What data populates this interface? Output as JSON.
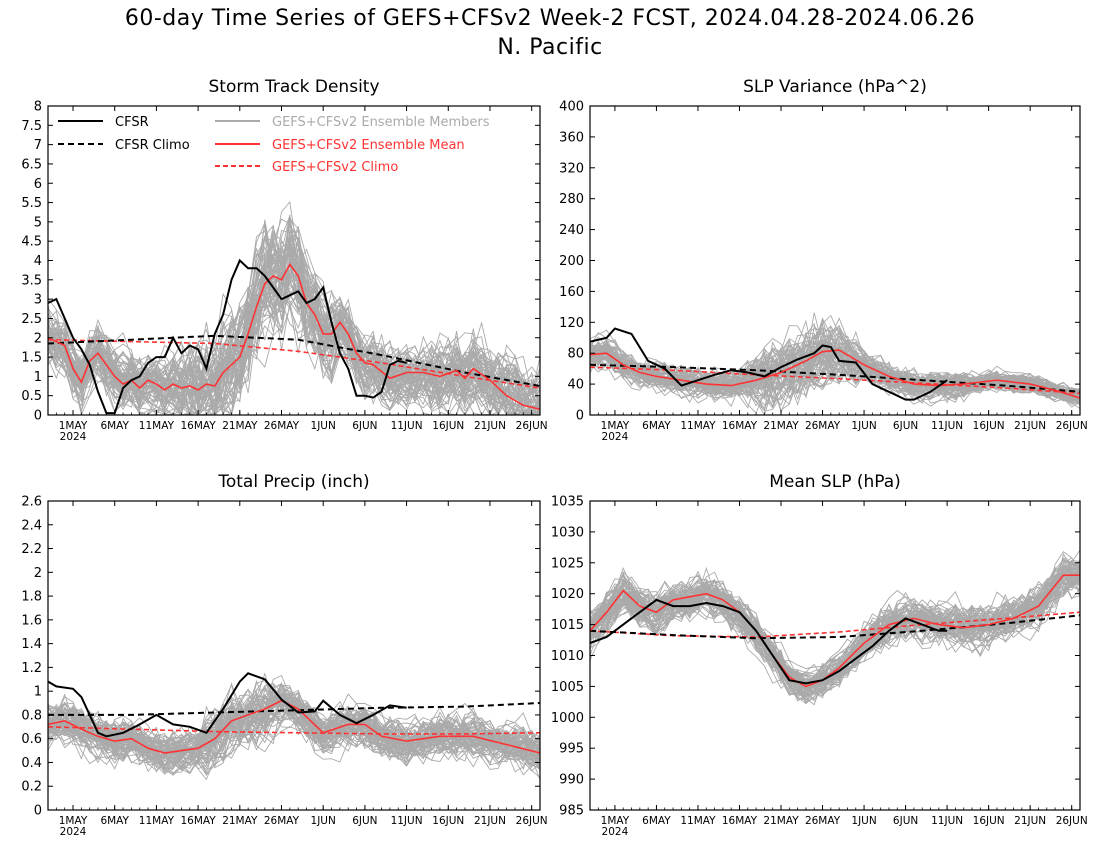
{
  "title": {
    "line1": "60-day Time Series of GEFS+CFSv2 Week-2 FCST, 2024.04.28-2024.06.26",
    "line2": "N. Pacific"
  },
  "legend": {
    "placement": "top (Storm Track Density panel)",
    "cfsr": "CFSR",
    "cfsr_climo": "CFSR Climo",
    "members": "GEFS+CFSv2 Ensemble Members",
    "mean": "GEFS+CFSv2 Ensemble Mean",
    "climo": "GEFS+CFSv2 Climo"
  },
  "colors": {
    "cfsr": "#000000",
    "ensemble_members": "#aaaaaa",
    "ensemble_mean": "#ff3333"
  },
  "chart_data": [
    {
      "type": "line",
      "title": "Storm Track Density",
      "x_range": [
        "2024-04-28",
        "2024-06-26"
      ],
      "xticks": [
        "1MAY\n2024",
        "6MAY",
        "11MAY",
        "16MAY",
        "21MAY",
        "26MAY",
        "1JUN",
        "6JUN",
        "11JUN",
        "16JUN",
        "21JUN",
        "26JUN"
      ],
      "ylim": [
        0,
        8
      ],
      "yticks": [
        "0",
        "0.5",
        "1",
        "1.5",
        "2",
        "2.5",
        "3",
        "3.5",
        "4",
        "4.5",
        "5",
        "5.5",
        "6",
        "6.5",
        "7",
        "7.5",
        "8"
      ],
      "grid": false,
      "series": [
        {
          "name": "CFSR",
          "x": [
            "2024-04-28",
            "2024-04-29",
            "2024-04-30",
            "2024-05-01",
            "2024-05-02",
            "2024-05-03",
            "2024-05-04",
            "2024-05-05",
            "2024-05-06",
            "2024-05-07",
            "2024-05-08",
            "2024-05-09",
            "2024-05-10",
            "2024-05-11",
            "2024-05-12",
            "2024-05-13",
            "2024-05-14",
            "2024-05-15",
            "2024-05-16",
            "2024-05-17",
            "2024-05-18",
            "2024-05-19",
            "2024-05-20",
            "2024-05-21",
            "2024-05-22",
            "2024-05-23",
            "2024-05-24",
            "2024-05-25",
            "2024-05-26",
            "2024-05-27",
            "2024-05-28",
            "2024-05-29",
            "2024-05-30",
            "2024-05-31",
            "2024-06-01",
            "2024-06-02",
            "2024-06-03",
            "2024-06-04",
            "2024-06-05",
            "2024-06-06",
            "2024-06-07",
            "2024-06-08",
            "2024-06-09",
            "2024-06-10"
          ],
          "y": [
            2.9,
            3.0,
            2.5,
            2.0,
            1.7,
            1.3,
            0.6,
            0.05,
            0.05,
            0.7,
            0.9,
            1.0,
            1.35,
            1.5,
            1.5,
            2.0,
            1.6,
            1.8,
            1.7,
            1.2,
            2.1,
            2.6,
            3.5,
            4.0,
            3.8,
            3.8,
            3.6,
            3.3,
            3.0,
            3.1,
            3.2,
            2.9,
            3.0,
            3.3,
            2.4,
            1.6,
            1.2,
            0.5,
            0.5,
            0.45,
            0.6,
            1.3,
            1.4,
            1.35
          ]
        },
        {
          "name": "CFSR Climo",
          "x": [
            "2024-04-28",
            "2024-05-08",
            "2024-05-18",
            "2024-05-28",
            "2024-06-07",
            "2024-06-17",
            "2024-06-26"
          ],
          "y": [
            1.85,
            1.95,
            2.05,
            1.95,
            1.55,
            1.1,
            0.75
          ]
        },
        {
          "name": "GEFS+CFSv2 Ensemble Mean",
          "x": [
            "2024-04-28",
            "2024-04-30",
            "2024-05-01",
            "2024-05-02",
            "2024-05-03",
            "2024-05-04",
            "2024-05-05",
            "2024-05-06",
            "2024-05-07",
            "2024-05-08",
            "2024-05-09",
            "2024-05-10",
            "2024-05-11",
            "2024-05-12",
            "2024-05-13",
            "2024-05-14",
            "2024-05-15",
            "2024-05-16",
            "2024-05-17",
            "2024-05-18",
            "2024-05-19",
            "2024-05-20",
            "2024-05-21",
            "2024-05-22",
            "2024-05-23",
            "2024-05-24",
            "2024-05-25",
            "2024-05-26",
            "2024-05-27",
            "2024-05-28",
            "2024-05-29",
            "2024-05-30",
            "2024-05-31",
            "2024-06-01",
            "2024-06-02",
            "2024-06-03",
            "2024-06-04",
            "2024-06-05",
            "2024-06-06",
            "2024-06-08",
            "2024-06-10",
            "2024-06-12",
            "2024-06-14",
            "2024-06-16",
            "2024-06-17",
            "2024-06-18",
            "2024-06-20",
            "2024-06-22",
            "2024-06-24",
            "2024-06-26"
          ],
          "y": [
            2.0,
            1.8,
            1.2,
            0.85,
            1.4,
            1.6,
            1.3,
            1.0,
            0.8,
            0.9,
            0.7,
            0.9,
            0.8,
            0.65,
            0.8,
            0.7,
            0.75,
            0.65,
            0.8,
            0.75,
            1.1,
            1.3,
            1.5,
            2.1,
            2.8,
            3.4,
            3.6,
            3.5,
            3.9,
            3.6,
            2.9,
            2.6,
            2.1,
            2.1,
            2.4,
            2.1,
            1.6,
            1.35,
            1.3,
            0.95,
            1.1,
            1.1,
            1.0,
            1.15,
            0.95,
            1.2,
            0.9,
            0.5,
            0.25,
            0.15
          ]
        },
        {
          "name": "GEFS+CFSv2 Climo",
          "x": [
            "2024-04-28",
            "2024-05-08",
            "2024-05-18",
            "2024-05-28",
            "2024-06-07",
            "2024-06-17",
            "2024-06-26"
          ],
          "y": [
            1.95,
            1.9,
            1.85,
            1.65,
            1.35,
            1.0,
            0.7
          ]
        }
      ]
    },
    {
      "type": "line",
      "title": "SLP Variance (hPa^2)",
      "x_range": [
        "2024-04-28",
        "2024-06-26"
      ],
      "xticks": [
        "1MAY\n2024",
        "6MAY",
        "11MAY",
        "16MAY",
        "21MAY",
        "26MAY",
        "1JUN",
        "6JUN",
        "11JUN",
        "16JUN",
        "21JUN",
        "26JUN"
      ],
      "ylim": [
        0,
        400
      ],
      "yticks": [
        "0",
        "40",
        "80",
        "120",
        "160",
        "200",
        "240",
        "280",
        "320",
        "360",
        "400"
      ],
      "grid": false,
      "series": [
        {
          "name": "CFSR",
          "x": [
            "2024-04-28",
            "2024-04-30",
            "2024-05-01",
            "2024-05-03",
            "2024-05-05",
            "2024-05-07",
            "2024-05-09",
            "2024-05-11",
            "2024-05-13",
            "2024-05-15",
            "2024-05-17",
            "2024-05-19",
            "2024-05-21",
            "2024-05-23",
            "2024-05-25",
            "2024-05-26",
            "2024-05-27",
            "2024-05-28",
            "2024-05-30",
            "2024-06-01",
            "2024-06-03",
            "2024-06-05",
            "2024-06-06",
            "2024-06-08",
            "2024-06-10"
          ],
          "y": [
            95,
            100,
            112,
            105,
            70,
            60,
            38,
            45,
            52,
            58,
            55,
            50,
            62,
            72,
            80,
            90,
            88,
            70,
            68,
            40,
            30,
            20,
            20,
            30,
            45
          ]
        },
        {
          "name": "CFSR Climo",
          "x": [
            "2024-04-28",
            "2024-05-08",
            "2024-05-18",
            "2024-05-28",
            "2024-06-07",
            "2024-06-17",
            "2024-06-26"
          ],
          "y": [
            65,
            62,
            58,
            52,
            45,
            38,
            30
          ]
        },
        {
          "name": "GEFS+CFSv2 Ensemble Mean",
          "x": [
            "2024-04-28",
            "2024-04-30",
            "2024-05-02",
            "2024-05-04",
            "2024-05-06",
            "2024-05-09",
            "2024-05-12",
            "2024-05-15",
            "2024-05-18",
            "2024-05-21",
            "2024-05-24",
            "2024-05-26",
            "2024-05-28",
            "2024-05-31",
            "2024-06-03",
            "2024-06-06",
            "2024-06-09",
            "2024-06-12",
            "2024-06-16",
            "2024-06-20",
            "2024-06-23",
            "2024-06-26"
          ],
          "y": [
            78,
            80,
            65,
            55,
            50,
            45,
            40,
            38,
            45,
            55,
            70,
            82,
            84,
            65,
            50,
            40,
            38,
            40,
            45,
            40,
            32,
            22
          ]
        },
        {
          "name": "GEFS+CFSv2 Climo",
          "x": [
            "2024-04-28",
            "2024-05-08",
            "2024-05-18",
            "2024-05-28",
            "2024-06-07",
            "2024-06-17",
            "2024-06-26"
          ],
          "y": [
            62,
            58,
            52,
            47,
            41,
            35,
            28
          ]
        }
      ]
    },
    {
      "type": "line",
      "title": "Total Precip (inch)",
      "x_range": [
        "2024-04-28",
        "2024-06-26"
      ],
      "xticks": [
        "1MAY\n2024",
        "6MAY",
        "11MAY",
        "16MAY",
        "21MAY",
        "26MAY",
        "1JUN",
        "6JUN",
        "11JUN",
        "16JUN",
        "21JUN",
        "26JUN"
      ],
      "ylim": [
        0,
        2.6
      ],
      "yticks": [
        "0",
        "0.2",
        "0.4",
        "0.6",
        "0.8",
        "1",
        "1.2",
        "1.4",
        "1.6",
        "1.8",
        "2",
        "2.2",
        "2.4",
        "2.6"
      ],
      "grid": false,
      "series": [
        {
          "name": "CFSR",
          "x": [
            "2024-04-28",
            "2024-04-29",
            "2024-05-01",
            "2024-05-02",
            "2024-05-04",
            "2024-05-05",
            "2024-05-07",
            "2024-05-09",
            "2024-05-11",
            "2024-05-13",
            "2024-05-15",
            "2024-05-17",
            "2024-05-19",
            "2024-05-21",
            "2024-05-22",
            "2024-05-24",
            "2024-05-26",
            "2024-05-28",
            "2024-05-30",
            "2024-05-31",
            "2024-06-02",
            "2024-06-04",
            "2024-06-06",
            "2024-06-08",
            "2024-06-10"
          ],
          "y": [
            1.08,
            1.04,
            1.02,
            0.95,
            0.65,
            0.62,
            0.65,
            0.72,
            0.8,
            0.72,
            0.7,
            0.65,
            0.85,
            1.08,
            1.15,
            1.1,
            0.93,
            0.82,
            0.83,
            0.92,
            0.8,
            0.73,
            0.8,
            0.88,
            0.86
          ]
        },
        {
          "name": "CFSR Climo",
          "x": [
            "2024-04-28",
            "2024-05-08",
            "2024-05-18",
            "2024-05-28",
            "2024-06-07",
            "2024-06-17",
            "2024-06-26"
          ],
          "y": [
            0.8,
            0.8,
            0.82,
            0.84,
            0.86,
            0.87,
            0.9
          ]
        },
        {
          "name": "GEFS+CFSv2 Ensemble Mean",
          "x": [
            "2024-04-28",
            "2024-04-30",
            "2024-05-02",
            "2024-05-04",
            "2024-05-06",
            "2024-05-08",
            "2024-05-10",
            "2024-05-12",
            "2024-05-14",
            "2024-05-16",
            "2024-05-18",
            "2024-05-20",
            "2024-05-22",
            "2024-05-24",
            "2024-05-26",
            "2024-05-28",
            "2024-05-31",
            "2024-06-03",
            "2024-06-05",
            "2024-06-07",
            "2024-06-10",
            "2024-06-14",
            "2024-06-18",
            "2024-06-22",
            "2024-06-26"
          ],
          "y": [
            0.72,
            0.75,
            0.68,
            0.62,
            0.58,
            0.6,
            0.52,
            0.48,
            0.5,
            0.52,
            0.6,
            0.75,
            0.8,
            0.85,
            0.92,
            0.85,
            0.65,
            0.72,
            0.72,
            0.62,
            0.58,
            0.62,
            0.62,
            0.55,
            0.48
          ]
        },
        {
          "name": "GEFS+CFSv2 Climo",
          "x": [
            "2024-04-28",
            "2024-05-08",
            "2024-05-18",
            "2024-05-28",
            "2024-06-07",
            "2024-06-17",
            "2024-06-26"
          ],
          "y": [
            0.7,
            0.68,
            0.66,
            0.65,
            0.64,
            0.64,
            0.65
          ]
        }
      ]
    },
    {
      "type": "line",
      "title": "Mean SLP (hPa)",
      "x_range": [
        "2024-04-28",
        "2024-06-26"
      ],
      "xticks": [
        "1MAY\n2024",
        "6MAY",
        "11MAY",
        "16MAY",
        "21MAY",
        "26MAY",
        "1JUN",
        "6JUN",
        "11JUN",
        "16JUN",
        "21JUN",
        "26JUN"
      ],
      "ylim": [
        985,
        1035
      ],
      "yticks": [
        "985",
        "990",
        "995",
        "1000",
        "1005",
        "1010",
        "1015",
        "1020",
        "1025",
        "1030",
        "1035"
      ],
      "grid": false,
      "series": [
        {
          "name": "CFSR",
          "x": [
            "2024-04-28",
            "2024-04-30",
            "2024-05-02",
            "2024-05-04",
            "2024-05-06",
            "2024-05-08",
            "2024-05-10",
            "2024-05-12",
            "2024-05-14",
            "2024-05-16",
            "2024-05-18",
            "2024-05-20",
            "2024-05-22",
            "2024-05-24",
            "2024-05-26",
            "2024-05-28",
            "2024-05-30",
            "2024-06-01",
            "2024-06-03",
            "2024-06-05",
            "2024-06-07",
            "2024-06-09",
            "2024-06-10"
          ],
          "y": [
            1012,
            1013,
            1015,
            1017,
            1019,
            1018,
            1018,
            1018.5,
            1018,
            1017,
            1014,
            1010,
            1006,
            1005.5,
            1006,
            1007.5,
            1009.5,
            1011.5,
            1014,
            1016,
            1015,
            1014,
            1014
          ]
        },
        {
          "name": "CFSR Climo",
          "x": [
            "2024-04-28",
            "2024-05-08",
            "2024-05-18",
            "2024-05-28",
            "2024-06-07",
            "2024-06-17",
            "2024-06-26"
          ],
          "y": [
            1014,
            1013.3,
            1012.8,
            1013,
            1014,
            1015.2,
            1016.5
          ]
        },
        {
          "name": "GEFS+CFSv2 Ensemble Mean",
          "x": [
            "2024-04-28",
            "2024-04-30",
            "2024-05-02",
            "2024-05-04",
            "2024-05-06",
            "2024-05-08",
            "2024-05-10",
            "2024-05-12",
            "2024-05-14",
            "2024-05-16",
            "2024-05-18",
            "2024-05-20",
            "2024-05-22",
            "2024-05-24",
            "2024-05-26",
            "2024-05-28",
            "2024-05-31",
            "2024-06-03",
            "2024-06-06",
            "2024-06-09",
            "2024-06-12",
            "2024-06-15",
            "2024-06-18",
            "2024-06-21",
            "2024-06-24",
            "2024-06-26"
          ],
          "y": [
            1014,
            1017,
            1020.5,
            1018,
            1017,
            1019,
            1019.5,
            1020,
            1019,
            1017,
            1014,
            1010,
            1006.5,
            1005,
            1006,
            1008,
            1012,
            1015,
            1016,
            1015,
            1014.5,
            1015,
            1016,
            1018,
            1023,
            1023
          ]
        },
        {
          "name": "GEFS+CFSv2 Climo",
          "x": [
            "2024-04-28",
            "2024-05-08",
            "2024-05-18",
            "2024-05-28",
            "2024-06-07",
            "2024-06-17",
            "2024-06-26"
          ],
          "y": [
            1014,
            1013.2,
            1013,
            1013.8,
            1015,
            1016,
            1017
          ]
        }
      ]
    }
  ]
}
